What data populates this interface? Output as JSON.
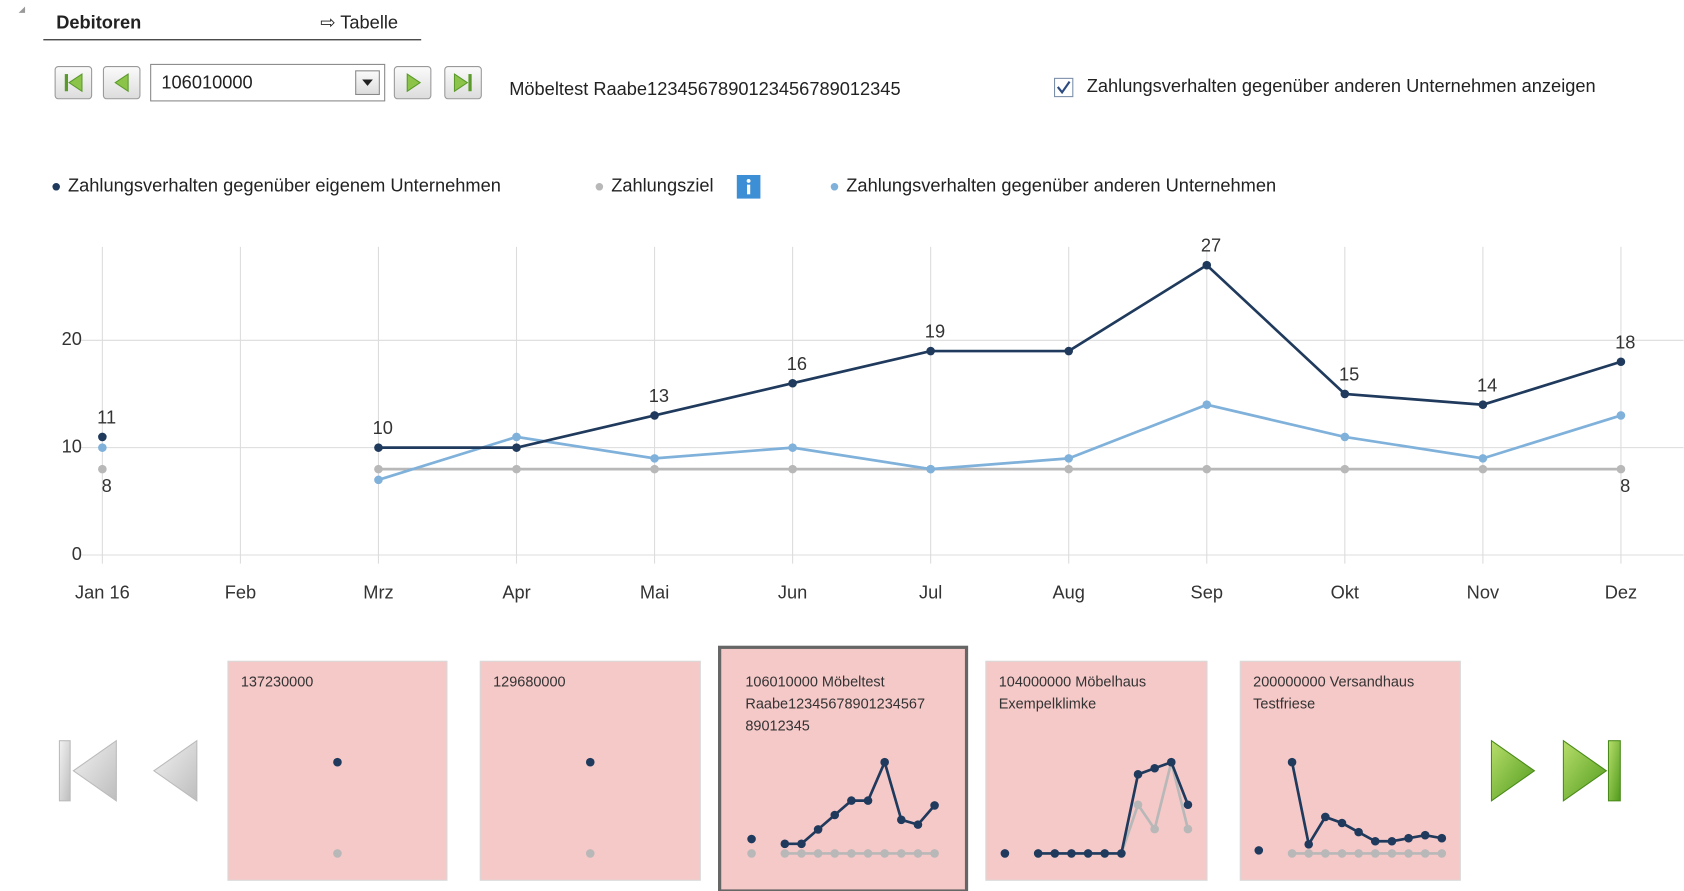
{
  "header": {
    "title": "Debitoren",
    "table_link": "⇨ Tabelle"
  },
  "toolbar": {
    "account": "106010000",
    "account_name": "Möbeltest Raabe1234567890123456789012345",
    "checkbox_label": "Zahlungsverhalten gegenüber anderen Unternehmen anzeigen",
    "checked": true
  },
  "chart_data": {
    "type": "line",
    "categories": [
      "Jan 16",
      "Feb",
      "Mrz",
      "Apr",
      "Mai",
      "Jun",
      "Jul",
      "Aug",
      "Sep",
      "Okt",
      "Nov",
      "Dez"
    ],
    "ylim": [
      0,
      28.7
    ],
    "yticks": [
      0,
      10,
      20
    ],
    "grid": true,
    "series": [
      {
        "name": "Zahlungsziel",
        "color": "#b8b8b8",
        "values": [
          8,
          null,
          8,
          8,
          8,
          8,
          8,
          8,
          8,
          8,
          8,
          8
        ],
        "value_labels": [
          "8",
          null,
          null,
          null,
          null,
          null,
          null,
          null,
          null,
          null,
          null,
          "8"
        ],
        "label_side": "below"
      },
      {
        "name": "Zahlungsverhalten gegenüber anderen Unternehmen",
        "color": "#7fb1da",
        "values": [
          10,
          null,
          7,
          11,
          9,
          10,
          8,
          9,
          14,
          11,
          9,
          13
        ]
      },
      {
        "name": "Zahlungsverhalten gegenüber eigenem Unternehmen",
        "color": "#1f3a5c",
        "values": [
          11,
          null,
          10,
          10,
          13,
          16,
          19,
          19,
          27,
          15,
          14,
          18
        ],
        "value_labels": [
          "11",
          null,
          "10",
          null,
          "13",
          "16",
          "19",
          null,
          "27",
          "15",
          "14",
          "18"
        ],
        "label_side": "above"
      }
    ],
    "legend_order": [
      2,
      0,
      1
    ]
  },
  "cards": [
    {
      "lines": [
        "137230000"
      ],
      "selected": false,
      "series": [
        {
          "color": "#b8b8b8",
          "values": [
            8
          ]
        },
        {
          "color": "#1f3a5c",
          "values": [
            12
          ]
        }
      ]
    },
    {
      "lines": [
        "129680000"
      ],
      "selected": false,
      "series": [
        {
          "color": "#b8b8b8",
          "values": [
            8
          ]
        },
        {
          "color": "#1f3a5c",
          "values": [
            12
          ]
        }
      ]
    },
    {
      "lines": [
        "106010000 Möbeltest",
        "Raabe12345678901234567",
        "89012345"
      ],
      "selected": true,
      "series": [
        {
          "color": "#b8b8b8",
          "values": [
            8,
            null,
            8,
            8,
            8,
            8,
            8,
            8,
            8,
            8,
            8,
            8
          ]
        },
        {
          "color": "#1f3a5c",
          "values": [
            11,
            null,
            10,
            10,
            13,
            16,
            19,
            19,
            27,
            15,
            14,
            18
          ]
        }
      ]
    },
    {
      "lines": [
        "104000000 Möbelhaus",
        "Exempelklimke"
      ],
      "selected": false,
      "series": [
        {
          "color": "#b8b8b8",
          "values": [
            0,
            null,
            0,
            0,
            0,
            0,
            0,
            0,
            16,
            8,
            30,
            8
          ]
        },
        {
          "color": "#1f3a5c",
          "values": [
            0,
            null,
            0,
            0,
            0,
            0,
            0,
            0,
            26,
            28,
            30,
            16
          ]
        }
      ]
    },
    {
      "lines": [
        "200000000 Versandhaus",
        "Testfriese"
      ],
      "selected": false,
      "series": [
        {
          "color": "#b8b8b8",
          "values": [
            null,
            null,
            0,
            0,
            0,
            0,
            0,
            0,
            0,
            0,
            0,
            0
          ]
        },
        {
          "color": "#1f3a5c",
          "values": [
            1,
            null,
            30,
            3,
            12,
            10,
            7,
            4,
            4,
            5,
            6,
            5
          ]
        }
      ]
    }
  ]
}
